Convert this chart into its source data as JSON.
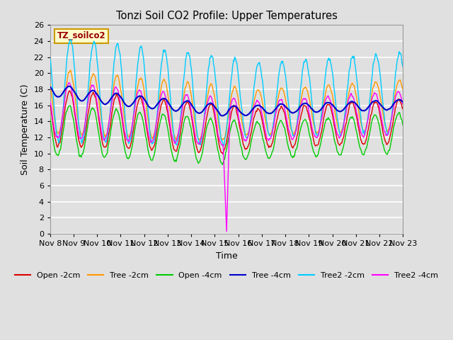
{
  "title": "Tonzi Soil CO2 Profile: Upper Temperatures",
  "xlabel": "Time",
  "ylabel": "Soil Temperature (C)",
  "ylim": [
    0,
    26
  ],
  "yticks": [
    0,
    2,
    4,
    6,
    8,
    10,
    12,
    14,
    16,
    18,
    20,
    22,
    24,
    26
  ],
  "xtick_labels": [
    "Nov 8",
    "Nov 9",
    "Nov 10",
    "Nov 11",
    "Nov 12",
    "Nov 13",
    "Nov 14",
    "Nov 15",
    "Nov 16",
    "Nov 17",
    "Nov 18",
    "Nov 19",
    "Nov 20",
    "Nov 21",
    "Nov 22",
    "Nov 23"
  ],
  "legend_label": "TZ_soilco2",
  "legend_box_color": "#ffffcc",
  "legend_box_edge": "#cc9900",
  "series_colors": {
    "Open -2cm": "#dd0000",
    "Tree -2cm": "#ff9900",
    "Open -4cm": "#00cc00",
    "Tree -4cm": "#0000cc",
    "Tree2 -2cm": "#00ccff",
    "Tree2 -4cm": "#ff00ff"
  },
  "background_color": "#e0e0e0",
  "plot_bg_color": "#e0e0e0",
  "grid_color": "#ffffff"
}
